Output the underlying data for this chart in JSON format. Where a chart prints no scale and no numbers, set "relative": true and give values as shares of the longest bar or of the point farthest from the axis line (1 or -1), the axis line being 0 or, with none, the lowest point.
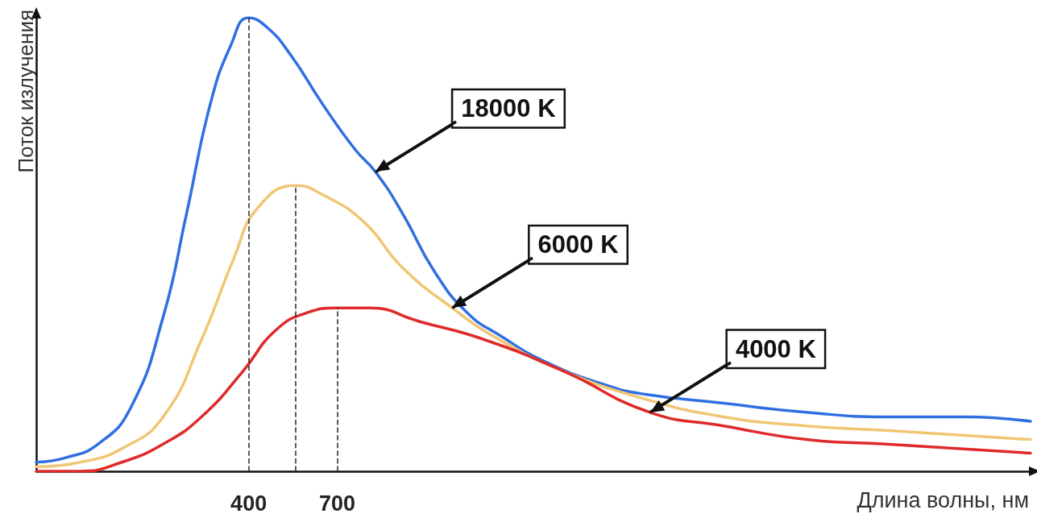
{
  "chart_data": {
    "type": "line",
    "xlabel": "Длина волны, нм",
    "ylabel": "Поток излучения",
    "relative": true,
    "tick_labels": "x",
    "marker": "none",
    "xlim": [
      -320,
      3050
    ],
    "xticks": [
      400,
      700
    ],
    "series": [
      {
        "color": "#2f6fe0",
        "x": [
          -320,
          -220,
          -110,
          0,
          110,
          190,
          270,
          340,
          400,
          460,
          540,
          650,
          760,
          830,
          920,
          1030,
          1140,
          1250,
          1410,
          1610,
          1740,
          2010,
          2290,
          2560,
          2830,
          3050
        ],
        "values": [
          0.02,
          0.03,
          0.06,
          0.14,
          0.34,
          0.57,
          0.81,
          0.94,
          1,
          0.98,
          0.92,
          0.81,
          0.71,
          0.66,
          0.57,
          0.44,
          0.35,
          0.3,
          0.24,
          0.19,
          0.17,
          0.15,
          0.13,
          0.12,
          0.12,
          0.11
        ]
      },
      {
        "color": "#f0c674",
        "x": [
          -320,
          -170,
          -30,
          110,
          240,
          350,
          430,
          560,
          650,
          790,
          920,
          1090,
          1250,
          1470,
          1740,
          2010,
          2290,
          2560,
          3050
        ],
        "values": [
          0.01,
          0.02,
          0.05,
          0.12,
          0.29,
          0.47,
          0.58,
          0.63,
          0.61,
          0.55,
          0.45,
          0.36,
          0.29,
          0.22,
          0.16,
          0.12,
          0.1,
          0.09,
          0.07
        ]
      },
      {
        "color": "#e02a2a",
        "x": [
          -320,
          -170,
          -30,
          110,
          240,
          380,
          490,
          600,
          700,
          810,
          980,
          1200,
          1470,
          1760,
          2010,
          2290,
          2560,
          3050
        ],
        "values": [
          0,
          0,
          0.02,
          0.06,
          0.12,
          0.22,
          0.31,
          0.35,
          0.36,
          0.36,
          0.33,
          0.29,
          0.22,
          0.13,
          0.1,
          0.07,
          0.06,
          0.04
        ]
      }
    ],
    "ref_lines": [
      {
        "axis": "x",
        "value": 400,
        "color": "#333333",
        "line_style": "dashed"
      },
      {
        "axis": "x",
        "value": 560,
        "color": "#333333",
        "line_style": "dashed"
      },
      {
        "axis": "x",
        "value": 700,
        "color": "#333333",
        "line_style": "dashed"
      }
    ],
    "annotations": [
      {
        "text": "18000 K",
        "x": 830,
        "y": 0.66
      },
      {
        "text": "6000 K",
        "x": 1090,
        "y": 0.36
      },
      {
        "text": "4000 K",
        "x": 1760,
        "y": 0.13
      }
    ]
  }
}
